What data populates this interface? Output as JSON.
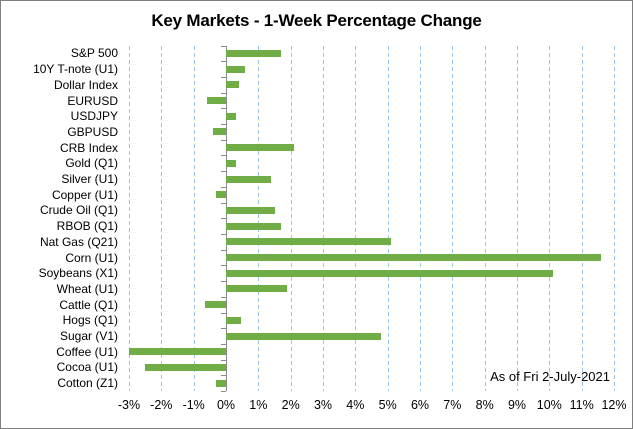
{
  "frame": {
    "border_color": "#7F7F7F",
    "background_color": "#FFFFFF"
  },
  "chart_data": {
    "type": "bar",
    "orientation": "horizontal",
    "title": "Key Markets - 1-Week Percentage Change",
    "annotation": "As of Fri 2-July-2021",
    "categories": [
      "S&P 500",
      "10Y T-note (U1)",
      "Dollar Index",
      "EURUSD",
      "USDJPY",
      "GBPUSD",
      "CRB Index",
      "Gold (Q1)",
      "Silver (U1)",
      "Copper (U1)",
      "Crude Oil (Q1)",
      "RBOB (Q1)",
      "Nat Gas (Q21)",
      "Corn (U1)",
      "Soybeans (X1)",
      "Wheat (U1)",
      "Cattle (Q1)",
      "Hogs (Q1)",
      "Sugar (V1)",
      "Coffee (U1)",
      "Cocoa (U1)",
      "Cotton (Z1)"
    ],
    "values": [
      1.7,
      0.6,
      0.4,
      -0.6,
      0.3,
      -0.4,
      2.1,
      0.3,
      1.4,
      -0.3,
      1.5,
      1.7,
      5.1,
      11.6,
      10.1,
      1.9,
      -0.65,
      0.45,
      4.8,
      -3.0,
      -2.5,
      -0.3
    ],
    "unit": "percent",
    "xlim": [
      -3,
      12
    ],
    "x_tick_step": 1,
    "x_tick_labels": [
      "-3%",
      "-2%",
      "-1%",
      "0%",
      "1%",
      "2%",
      "3%",
      "4%",
      "5%",
      "6%",
      "7%",
      "8%",
      "9%",
      "10%",
      "11%",
      "12%"
    ],
    "grid": "vertical dashed gridlines every 1%",
    "legend": "none",
    "colors": {
      "bar": "#70AD47",
      "gridline": "#9DC3E6",
      "axis": "#8C8C8C",
      "text": "#000000"
    }
  }
}
